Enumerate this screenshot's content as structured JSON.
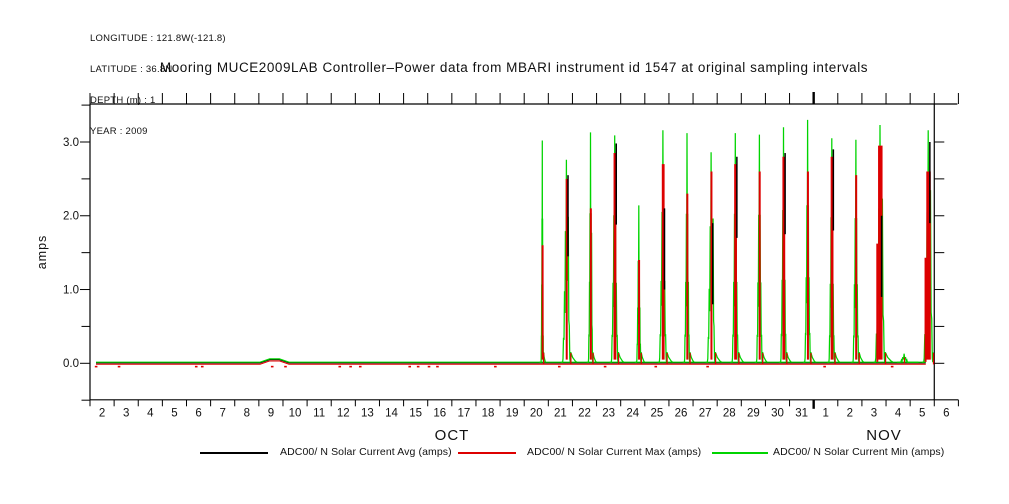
{
  "meta": {
    "longitude": "LONGITUDE : 121.8W(-121.8)",
    "latitude": "LATITUDE : 36.8N",
    "depth": "DEPTH (m) : 1",
    "year": "YEAR : 2009"
  },
  "chart_data": {
    "type": "line",
    "title": "Mooring MUCE2009LAB Controller–Power data from MBARI instrument id 1547 at original sampling intervals",
    "ylabel": "amps",
    "ylim": [
      -0.5,
      3.5
    ],
    "y_tick_labels": [
      "0.0",
      "1.0",
      "2.0",
      "3.0"
    ],
    "y_minor_step": 0.5,
    "grid": false,
    "legend_position": "bottom",
    "month_labels": [
      "OCT",
      "NOV"
    ],
    "x_tick_labels_oct": [
      "2",
      "3",
      "4",
      "5",
      "6",
      "7",
      "8",
      "9",
      "10",
      "11",
      "12",
      "13",
      "14",
      "15",
      "16",
      "17",
      "18",
      "19",
      "20",
      "21",
      "22",
      "23",
      "24",
      "25",
      "26",
      "27",
      "28",
      "29",
      "30",
      "31"
    ],
    "x_tick_labels_nov": [
      "1",
      "2",
      "3",
      "4",
      "5",
      "6"
    ],
    "x_range": {
      "start": "Oct 2 2009",
      "end": "Nov 6 2009"
    },
    "data_end_line": {
      "month": "Nov",
      "day": 6
    },
    "series": [
      {
        "name": "ADC00/ N Solar Current Avg (amps)",
        "color": "#000000"
      },
      {
        "name": "ADC00/ N Solar Current Max (amps)",
        "color": "#dd0000"
      },
      {
        "name": "ADC00/ N Solar Current Min (amps)",
        "color": "#00d400"
      }
    ],
    "flat_period": {
      "from": "Oct 2",
      "to": "Oct 20",
      "value_amps": 0.0
    },
    "baseline": {
      "green_value": 0.015,
      "red_value": -0.012,
      "black_value": 0.005,
      "raised_segment": {
        "from_day": 7.35,
        "to_day": 8.1,
        "value": 0.045
      },
      "red_dash_days": [
        0.2,
        1.15,
        4.35,
        4.6,
        7.5,
        8.05,
        10.3,
        10.75,
        11.15,
        13.2,
        13.55,
        14.0,
        14.35,
        16.75,
        19.4,
        21.3,
        23.4,
        25.55,
        30.4,
        33.2
      ]
    },
    "daily_peaks": [
      {
        "month": "Oct",
        "day": 20,
        "peak": 3.02,
        "peak2": 0,
        "width": 0.05,
        "red": 1.6,
        "avg": 0
      },
      {
        "month": "Oct",
        "day": 21,
        "peak": 2.76,
        "peak2": 2.58,
        "width": 0.16,
        "red": 2.5,
        "avg": 2.55
      },
      {
        "month": "Oct",
        "day": 22,
        "peak": 3.13,
        "peak2": 2.3,
        "width": 0.09,
        "red": 2.1,
        "avg": 0
      },
      {
        "month": "Oct",
        "day": 23,
        "peak": 3.09,
        "peak2": 0,
        "width": 0.14,
        "red": 2.85,
        "avg": 2.98
      },
      {
        "month": "Oct",
        "day": 24,
        "peak": 2.14,
        "peak2": 0,
        "width": 0.09,
        "red": 1.4,
        "avg": 0
      },
      {
        "month": "Oct",
        "day": 25,
        "peak": 3.16,
        "peak2": 0,
        "width": 0.15,
        "red": 2.7,
        "avg": 2.1
      },
      {
        "month": "Oct",
        "day": 26,
        "peak": 3.12,
        "peak2": 0,
        "width": 0.11,
        "red": 2.3,
        "avg": 0
      },
      {
        "month": "Oct",
        "day": 27,
        "peak": 2.86,
        "peak2": 2.55,
        "width": 0.16,
        "red": 2.6,
        "avg": 1.9
      },
      {
        "month": "Oct",
        "day": 28,
        "peak": 3.12,
        "peak2": 0,
        "width": 0.13,
        "red": 2.7,
        "avg": 2.8
      },
      {
        "month": "Oct",
        "day": 29,
        "peak": 3.1,
        "peak2": 0,
        "width": 0.12,
        "red": 2.6,
        "avg": 0
      },
      {
        "month": "Oct",
        "day": 30,
        "peak": 3.2,
        "peak2": 0,
        "width": 0.12,
        "red": 2.8,
        "avg": 2.85
      },
      {
        "month": "Oct",
        "day": 31,
        "peak": 3.3,
        "peak2": 0,
        "width": 0.12,
        "red": 2.6,
        "avg": 0
      },
      {
        "month": "Nov",
        "day": 1,
        "peak": 3.05,
        "peak2": 0,
        "width": 0.12,
        "red": 2.8,
        "avg": 2.9
      },
      {
        "month": "Nov",
        "day": 2,
        "peak": 3.03,
        "peak2": 0,
        "width": 0.12,
        "red": 2.55,
        "avg": 0
      },
      {
        "month": "Nov",
        "day": 3,
        "peak": 3.23,
        "peak2": 2.9,
        "width": 0.2,
        "red": 2.95,
        "avg": 2.0
      },
      {
        "month": "Nov",
        "day": 4,
        "peak": 0.13,
        "peak2": 0,
        "width": 0.22,
        "red": 0.08,
        "avg": 0,
        "tiny": true
      },
      {
        "month": "Nov",
        "day": 5,
        "peak": 3.16,
        "peak2": 3.05,
        "width": 0.19,
        "red": 2.6,
        "avg": 3.0
      }
    ]
  }
}
